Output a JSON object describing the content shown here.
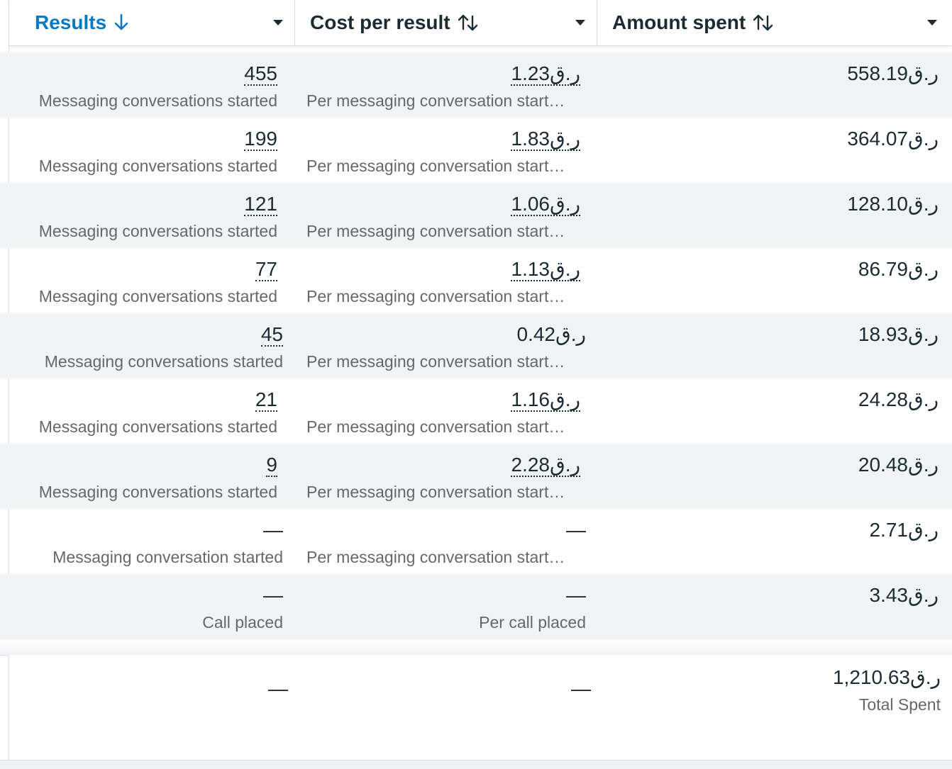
{
  "header": {
    "results_label": "Results",
    "cost_label": "Cost per result",
    "amount_label": "Amount spent"
  },
  "rows": [
    {
      "results": "455",
      "results_sub": "Messaging conversations started",
      "cost": "ر.ق1.23",
      "cost_sub": "Per messaging conversation start…",
      "amount": "ر.ق558.19"
    },
    {
      "results": "199",
      "results_sub": "Messaging conversations started",
      "cost": "ر.ق1.83",
      "cost_sub": "Per messaging conversation start…",
      "amount": "ر.ق364.07"
    },
    {
      "results": "121",
      "results_sub": "Messaging conversations started",
      "cost": "ر.ق1.06",
      "cost_sub": "Per messaging conversation start…",
      "amount": "ر.ق128.10"
    },
    {
      "results": "77",
      "results_sub": "Messaging conversations started",
      "cost": "ر.ق1.13",
      "cost_sub": "Per messaging conversation start…",
      "amount": "ر.ق86.79"
    },
    {
      "results": "45",
      "results_sub": "Messaging conversations started",
      "cost": "ر.ق0.42",
      "cost_sub": "Per messaging conversation start…",
      "amount": "ر.ق18.93"
    },
    {
      "results": "21",
      "results_sub": "Messaging conversations started",
      "cost": "ر.ق1.16",
      "cost_sub": "Per messaging conversation start…",
      "amount": "ر.ق24.28"
    },
    {
      "results": "9",
      "results_sub": "Messaging conversations started",
      "cost": "ر.ق2.28",
      "cost_sub": "Per messaging conversation start…",
      "amount": "ر.ق20.48"
    },
    {
      "results": "—",
      "results_sub": "Messaging conversation started",
      "cost": "—",
      "cost_sub": "Per messaging conversation start…",
      "amount": "ر.ق2.71"
    },
    {
      "results": "—",
      "results_sub": "Call placed",
      "cost": "—",
      "cost_sub": "Per call placed",
      "amount": "ر.ق3.43"
    }
  ],
  "totals": {
    "results": "—",
    "cost": "—",
    "amount": "ر.ق1,210.63",
    "amount_label": "Total Spent"
  }
}
